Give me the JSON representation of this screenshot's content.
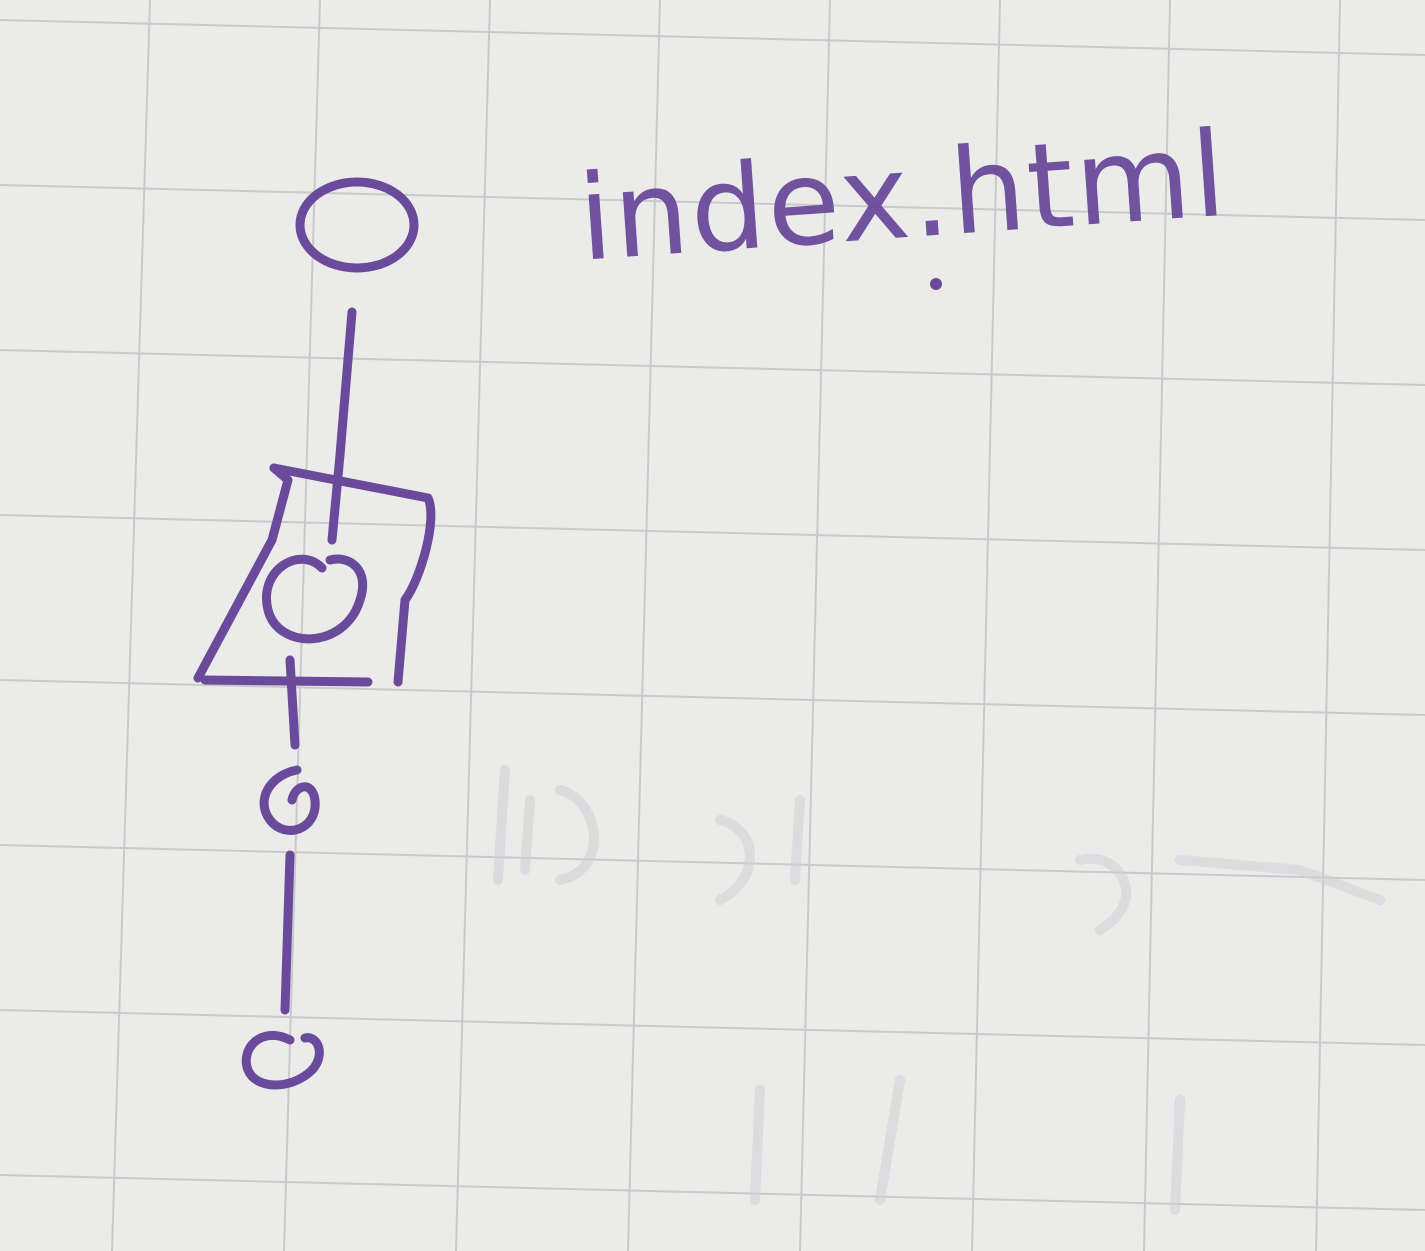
{
  "diagram": {
    "file_label": "index.html",
    "ink_color": "#6a4a9a",
    "grid_color": "#c9c9c9",
    "paper_color": "#ebebea"
  }
}
